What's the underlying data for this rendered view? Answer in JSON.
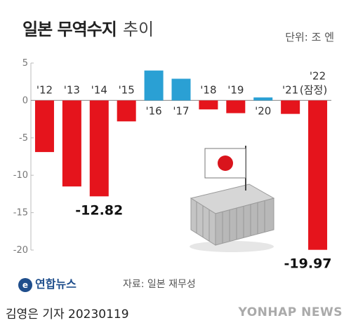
{
  "header": {
    "title": "일본 무역수지",
    "subtitle": "추이",
    "unit": "단위: 조 엔"
  },
  "chart_data": {
    "type": "bar",
    "categories": [
      "'12",
      "'13",
      "'14",
      "'15",
      "'16",
      "'17",
      "'18",
      "'19",
      "'20",
      "'21",
      "'22"
    ],
    "category_note": "(잠정)",
    "values": [
      -6.9,
      -11.5,
      -12.82,
      -2.8,
      4.0,
      2.9,
      -1.2,
      -1.7,
      0.4,
      -1.8,
      -19.97
    ],
    "ylim": [
      -20,
      5
    ],
    "yticks": [
      5,
      0,
      -5,
      -10,
      -15,
      -20
    ],
    "data_labels": [
      {
        "index": 2,
        "text": "-12.82"
      },
      {
        "index": 10,
        "text": "-19.97"
      }
    ],
    "colors": {
      "negative": "#e5141c",
      "positive": "#2aa0d4"
    }
  },
  "source": "자료: 일본 재무성",
  "brand": {
    "name": "연합뉴스"
  },
  "footer": {
    "reporter": "김영은 기자",
    "date": "20230119",
    "watermark": "YONHAP NEWS"
  }
}
